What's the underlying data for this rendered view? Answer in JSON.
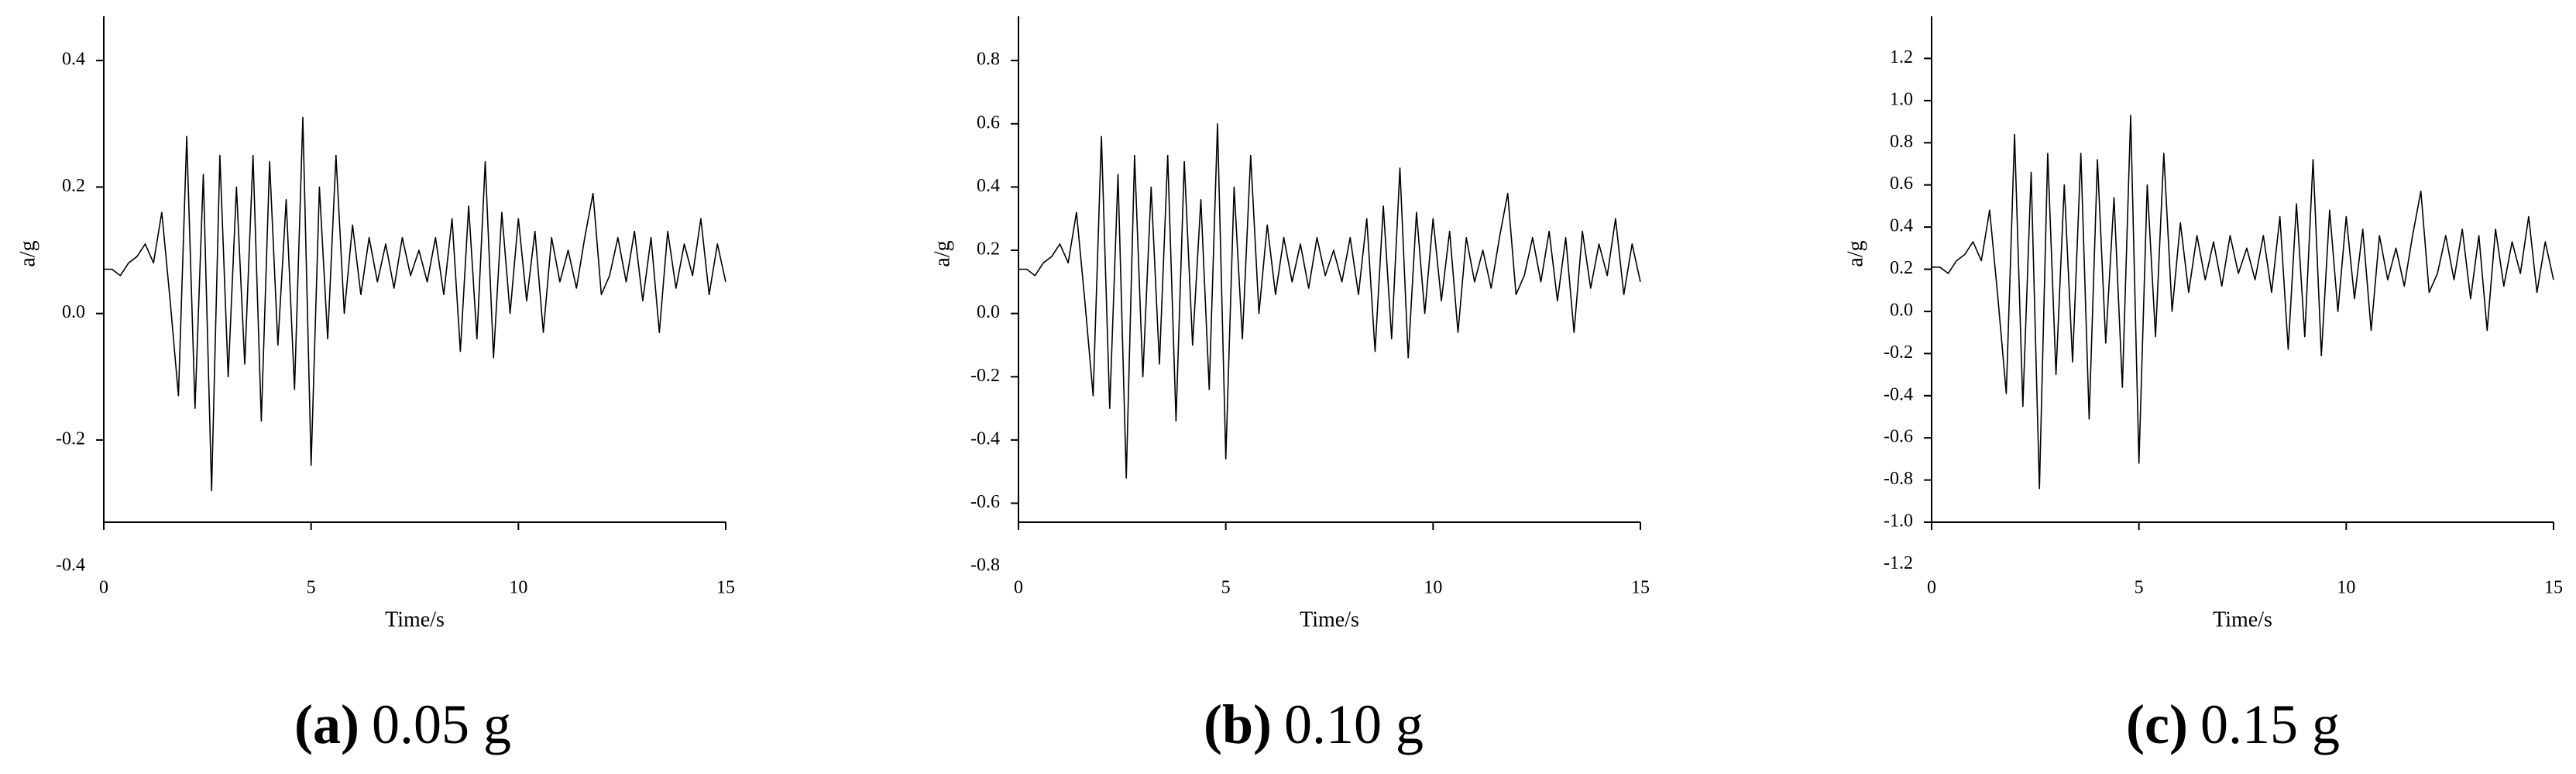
{
  "chart_data": [
    {
      "type": "line",
      "caption_label": "(a)",
      "caption": "0.05 g",
      "xlabel": "Time/s",
      "ylabel": "a/g",
      "xlim": [
        0,
        15
      ],
      "xticks": [
        0,
        5,
        10,
        15
      ],
      "ylim": [
        -0.33,
        0.47
      ],
      "yticks": [
        -0.4,
        -0.2,
        {
          "value": 0,
          "label": "0.0"
        },
        0.2,
        0.4
      ],
      "x": [
        0,
        0.2,
        0.4,
        0.6,
        0.8,
        1,
        1.2,
        1.4,
        1.6,
        1.8,
        2,
        2.2,
        2.4,
        2.6,
        2.8,
        3,
        3.2,
        3.4,
        3.6,
        3.8,
        4,
        4.2,
        4.4,
        4.6,
        4.8,
        5,
        5.2,
        5.4,
        5.6,
        5.8,
        6,
        6.2,
        6.4,
        6.6,
        6.8,
        7,
        7.2,
        7.4,
        7.6,
        7.8,
        8,
        8.2,
        8.4,
        8.6,
        8.8,
        9,
        9.2,
        9.4,
        9.6,
        9.8,
        10,
        10.2,
        10.4,
        10.6,
        10.8,
        11,
        11.2,
        11.4,
        11.6,
        11.8,
        12,
        12.2,
        12.4,
        12.6,
        12.8,
        13,
        13.2,
        13.4,
        13.6,
        13.8,
        14,
        14.2,
        14.4,
        14.6,
        14.8,
        15
      ],
      "color": "#000000",
      "values": [
        0.07,
        0.07,
        0.06,
        0.08,
        0.09,
        0.11,
        0.08,
        0.16,
        0.02,
        -0.13,
        0.28,
        -0.15,
        0.22,
        -0.28,
        0.25,
        -0.1,
        0.2,
        -0.08,
        0.25,
        -0.17,
        0.24,
        -0.05,
        0.18,
        -0.12,
        0.31,
        -0.24,
        0.2,
        -0.04,
        0.25,
        0.0,
        0.14,
        0.03,
        0.12,
        0.05,
        0.11,
        0.04,
        0.12,
        0.06,
        0.1,
        0.05,
        0.12,
        0.03,
        0.15,
        -0.06,
        0.17,
        -0.04,
        0.24,
        -0.07,
        0.16,
        0.0,
        0.15,
        0.02,
        0.13,
        -0.03,
        0.12,
        0.05,
        0.1,
        0.04,
        0.12,
        0.19,
        0.03,
        0.06,
        0.12,
        0.05,
        0.13,
        0.02,
        0.12,
        -0.03,
        0.13,
        0.04,
        0.11,
        0.06,
        0.15,
        0.03,
        0.11,
        0.05
      ]
    },
    {
      "type": "line",
      "caption_label": "(b)",
      "caption": "0.10 g",
      "xlabel": "Time/s",
      "ylabel": "a/g",
      "xlim": [
        0,
        15
      ],
      "xticks": [
        0,
        5,
        10,
        15
      ],
      "ylim": [
        -0.66,
        0.94
      ],
      "yticks": [
        -0.8,
        -0.6,
        -0.4,
        -0.2,
        {
          "value": 0,
          "label": "0.0"
        },
        0.2,
        0.4,
        0.6,
        0.8
      ],
      "x": [
        0,
        0.2,
        0.4,
        0.6,
        0.8,
        1,
        1.2,
        1.4,
        1.6,
        1.8,
        2,
        2.2,
        2.4,
        2.6,
        2.8,
        3,
        3.2,
        3.4,
        3.6,
        3.8,
        4,
        4.2,
        4.4,
        4.6,
        4.8,
        5,
        5.2,
        5.4,
        5.6,
        5.8,
        6,
        6.2,
        6.4,
        6.6,
        6.8,
        7,
        7.2,
        7.4,
        7.6,
        7.8,
        8,
        8.2,
        8.4,
        8.6,
        8.8,
        9,
        9.2,
        9.4,
        9.6,
        9.8,
        10,
        10.2,
        10.4,
        10.6,
        10.8,
        11,
        11.2,
        11.4,
        11.6,
        11.8,
        12,
        12.2,
        12.4,
        12.6,
        12.8,
        13,
        13.2,
        13.4,
        13.6,
        13.8,
        14,
        14.2,
        14.4,
        14.6,
        14.8,
        15
      ],
      "color": "#000000",
      "values": [
        0.14,
        0.14,
        0.12,
        0.16,
        0.18,
        0.22,
        0.16,
        0.32,
        0.04,
        -0.26,
        0.56,
        -0.3,
        0.44,
        -0.52,
        0.5,
        -0.2,
        0.4,
        -0.16,
        0.5,
        -0.34,
        0.48,
        -0.1,
        0.36,
        -0.24,
        0.6,
        -0.46,
        0.4,
        -0.08,
        0.5,
        0.0,
        0.28,
        0.06,
        0.24,
        0.1,
        0.22,
        0.08,
        0.24,
        0.12,
        0.2,
        0.1,
        0.24,
        0.06,
        0.3,
        -0.12,
        0.34,
        -0.08,
        0.46,
        -0.14,
        0.32,
        0.0,
        0.3,
        0.04,
        0.26,
        -0.06,
        0.24,
        0.1,
        0.2,
        0.08,
        0.24,
        0.38,
        0.06,
        0.12,
        0.24,
        0.1,
        0.26,
        0.04,
        0.24,
        -0.06,
        0.26,
        0.08,
        0.22,
        0.12,
        0.3,
        0.06,
        0.22,
        0.1
      ]
    },
    {
      "type": "line",
      "caption_label": "(c)",
      "caption": "0.15 g",
      "xlabel": "Time/s",
      "ylabel": "a/g",
      "xlim": [
        0,
        15
      ],
      "xticks": [
        0,
        5,
        10,
        15
      ],
      "ylim": [
        -1.0,
        1.4
      ],
      "yticks": [
        -1.2,
        {
          "value": -1,
          "label": "-1.0"
        },
        -0.8,
        -0.6,
        -0.4,
        -0.2,
        {
          "value": 0,
          "label": "0.0"
        },
        0.2,
        0.4,
        0.6,
        0.8,
        {
          "value": 1,
          "label": "1.0"
        },
        1.2
      ],
      "x": [
        0,
        0.2,
        0.4,
        0.6,
        0.8,
        1,
        1.2,
        1.4,
        1.6,
        1.8,
        2,
        2.2,
        2.4,
        2.6,
        2.8,
        3,
        3.2,
        3.4,
        3.6,
        3.8,
        4,
        4.2,
        4.4,
        4.6,
        4.8,
        5,
        5.2,
        5.4,
        5.6,
        5.8,
        6,
        6.2,
        6.4,
        6.6,
        6.8,
        7,
        7.2,
        7.4,
        7.6,
        7.8,
        8,
        8.2,
        8.4,
        8.6,
        8.8,
        9,
        9.2,
        9.4,
        9.6,
        9.8,
        10,
        10.2,
        10.4,
        10.6,
        10.8,
        11,
        11.2,
        11.4,
        11.6,
        11.8,
        12,
        12.2,
        12.4,
        12.6,
        12.8,
        13,
        13.2,
        13.4,
        13.6,
        13.8,
        14,
        14.2,
        14.4,
        14.6,
        14.8,
        15
      ],
      "color": "#000000",
      "values": [
        0.21,
        0.21,
        0.18,
        0.24,
        0.27,
        0.33,
        0.24,
        0.48,
        0.06,
        -0.39,
        0.84,
        -0.45,
        0.66,
        -0.84,
        0.75,
        -0.3,
        0.6,
        -0.24,
        0.75,
        -0.51,
        0.72,
        -0.15,
        0.54,
        -0.36,
        0.93,
        -0.72,
        0.6,
        -0.12,
        0.75,
        0.0,
        0.42,
        0.09,
        0.36,
        0.15,
        0.33,
        0.12,
        0.36,
        0.18,
        0.3,
        0.15,
        0.36,
        0.09,
        0.45,
        -0.18,
        0.51,
        -0.12,
        0.72,
        -0.21,
        0.48,
        0.0,
        0.45,
        0.06,
        0.39,
        -0.09,
        0.36,
        0.15,
        0.3,
        0.12,
        0.36,
        0.57,
        0.09,
        0.18,
        0.36,
        0.15,
        0.39,
        0.06,
        0.36,
        -0.09,
        0.39,
        0.12,
        0.33,
        0.18,
        0.45,
        0.09,
        0.33,
        0.15
      ]
    }
  ]
}
